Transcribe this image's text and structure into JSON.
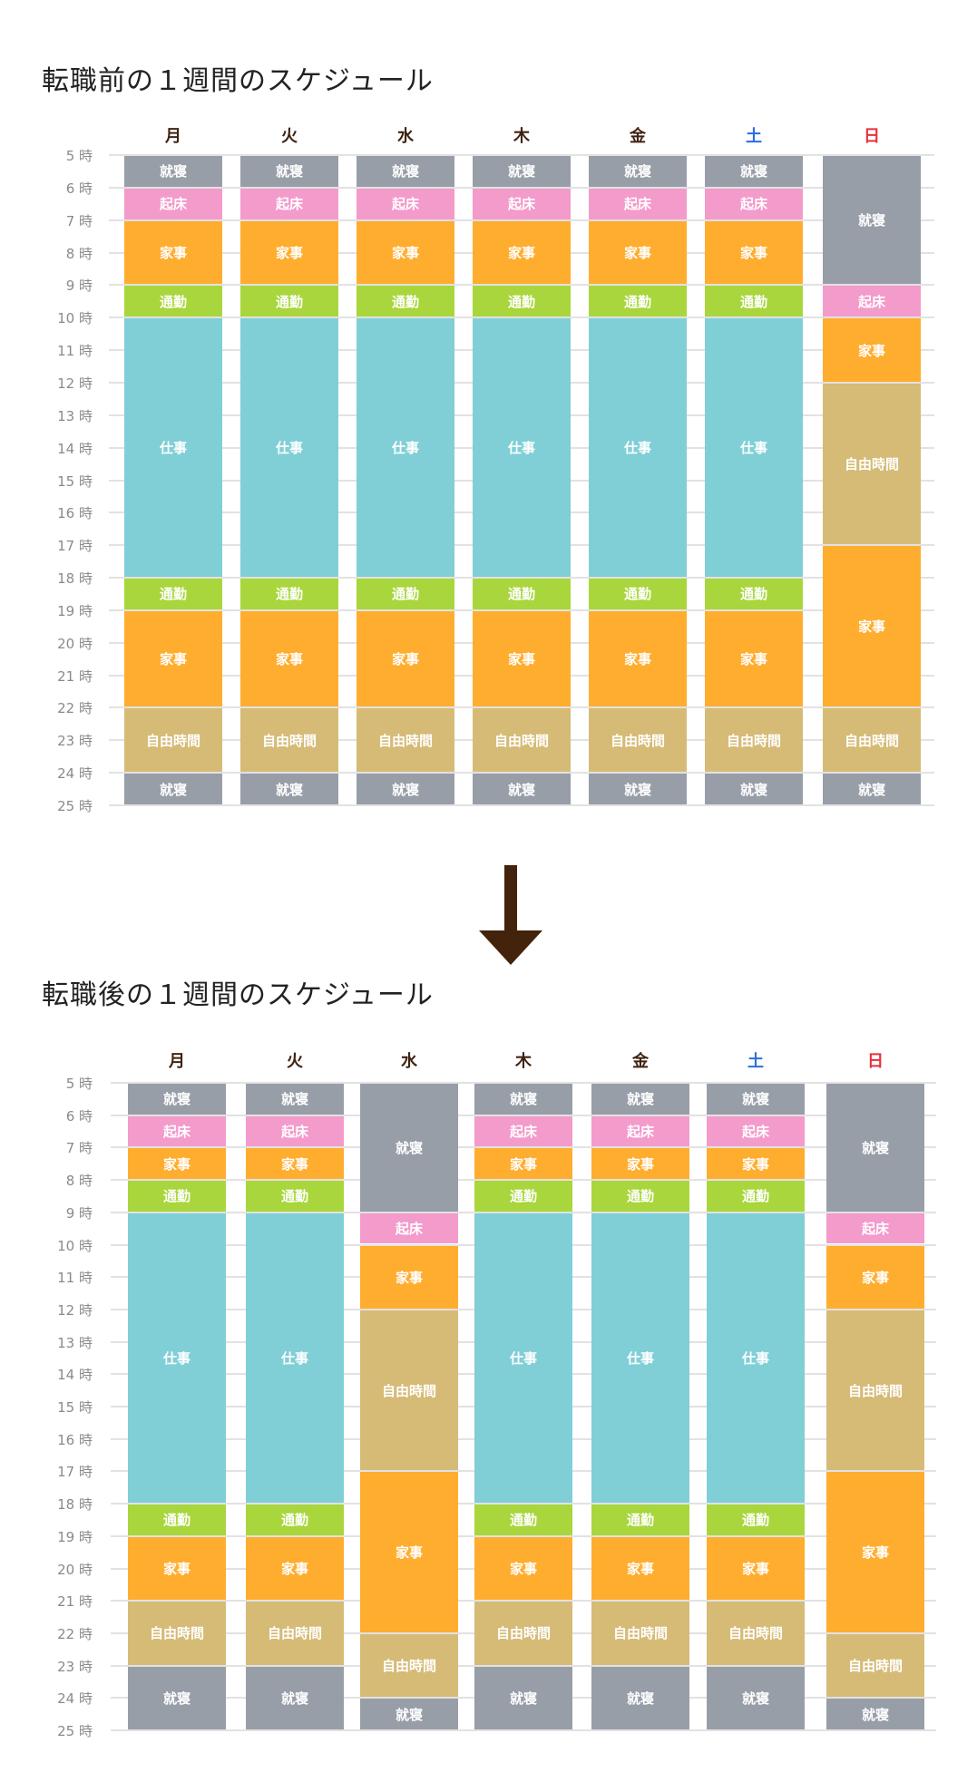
{
  "colors": {
    "就寝": "#989ea8",
    "起床": "#f39bcb",
    "家事": "#ffad2f",
    "通勤": "#a9d63c",
    "仕事": "#80cfd6",
    "自由時間": "#d6bb77",
    "weekday": "#3f2310",
    "saturday": "#2a6ee0",
    "sunday": "#e8303a",
    "arrow": "#44230c"
  },
  "chart_data": [
    {
      "type": "bar",
      "title": "転職前の１週間のスケジュール",
      "categories": [
        "月",
        "火",
        "水",
        "木",
        "金",
        "土",
        "日"
      ],
      "y_ticks": [
        "5 時",
        "6 時",
        "7 時",
        "8 時",
        "9 時",
        "10 時",
        "11 時",
        "12 時",
        "13 時",
        "14 時",
        "15 時",
        "16 時",
        "17 時",
        "18 時",
        "19 時",
        "20 時",
        "21 時",
        "22 時",
        "23 時",
        "24 時",
        "25 時"
      ],
      "ylim": [
        5,
        25
      ],
      "grid": true,
      "days": [
        [
          [
            "就寝",
            5,
            6
          ],
          [
            "起床",
            6,
            7
          ],
          [
            "家事",
            7,
            9
          ],
          [
            "通勤",
            9,
            10
          ],
          [
            "仕事",
            10,
            18
          ],
          [
            "通勤",
            18,
            19
          ],
          [
            "家事",
            19,
            22
          ],
          [
            "自由時間",
            22,
            24
          ],
          [
            "就寝",
            24,
            25
          ]
        ],
        [
          [
            "就寝",
            5,
            6
          ],
          [
            "起床",
            6,
            7
          ],
          [
            "家事",
            7,
            9
          ],
          [
            "通勤",
            9,
            10
          ],
          [
            "仕事",
            10,
            18
          ],
          [
            "通勤",
            18,
            19
          ],
          [
            "家事",
            19,
            22
          ],
          [
            "自由時間",
            22,
            24
          ],
          [
            "就寝",
            24,
            25
          ]
        ],
        [
          [
            "就寝",
            5,
            6
          ],
          [
            "起床",
            6,
            7
          ],
          [
            "家事",
            7,
            9
          ],
          [
            "通勤",
            9,
            10
          ],
          [
            "仕事",
            10,
            18
          ],
          [
            "通勤",
            18,
            19
          ],
          [
            "家事",
            19,
            22
          ],
          [
            "自由時間",
            22,
            24
          ],
          [
            "就寝",
            24,
            25
          ]
        ],
        [
          [
            "就寝",
            5,
            6
          ],
          [
            "起床",
            6,
            7
          ],
          [
            "家事",
            7,
            9
          ],
          [
            "通勤",
            9,
            10
          ],
          [
            "仕事",
            10,
            18
          ],
          [
            "通勤",
            18,
            19
          ],
          [
            "家事",
            19,
            22
          ],
          [
            "自由時間",
            22,
            24
          ],
          [
            "就寝",
            24,
            25
          ]
        ],
        [
          [
            "就寝",
            5,
            6
          ],
          [
            "起床",
            6,
            7
          ],
          [
            "家事",
            7,
            9
          ],
          [
            "通勤",
            9,
            10
          ],
          [
            "仕事",
            10,
            18
          ],
          [
            "通勤",
            18,
            19
          ],
          [
            "家事",
            19,
            22
          ],
          [
            "自由時間",
            22,
            24
          ],
          [
            "就寝",
            24,
            25
          ]
        ],
        [
          [
            "就寝",
            5,
            6
          ],
          [
            "起床",
            6,
            7
          ],
          [
            "家事",
            7,
            9
          ],
          [
            "通勤",
            9,
            10
          ],
          [
            "仕事",
            10,
            18
          ],
          [
            "通勤",
            18,
            19
          ],
          [
            "家事",
            19,
            22
          ],
          [
            "自由時間",
            22,
            24
          ],
          [
            "就寝",
            24,
            25
          ]
        ],
        [
          [
            "就寝",
            5,
            9
          ],
          [
            "起床",
            9,
            10
          ],
          [
            "家事",
            10,
            12
          ],
          [
            "自由時間",
            12,
            17
          ],
          [
            "家事",
            17,
            22
          ],
          [
            "自由時間",
            22,
            24
          ],
          [
            "就寝",
            24,
            25
          ]
        ]
      ]
    },
    {
      "type": "bar",
      "title": "転職後の１週間のスケジュール",
      "categories": [
        "月",
        "火",
        "水",
        "木",
        "金",
        "土",
        "日"
      ],
      "y_ticks": [
        "5 時",
        "6 時",
        "7 時",
        "8 時",
        "9 時",
        "10 時",
        "11 時",
        "12 時",
        "13 時",
        "14 時",
        "15 時",
        "16 時",
        "17 時",
        "18 時",
        "19 時",
        "20 時",
        "21 時",
        "22 時",
        "23 時",
        "24 時",
        "25 時"
      ],
      "ylim": [
        5,
        25
      ],
      "grid": true,
      "days": [
        [
          [
            "就寝",
            5,
            6
          ],
          [
            "起床",
            6,
            7
          ],
          [
            "家事",
            7,
            8
          ],
          [
            "通勤",
            8,
            9
          ],
          [
            "仕事",
            9,
            18
          ],
          [
            "通勤",
            18,
            19
          ],
          [
            "家事",
            19,
            21
          ],
          [
            "自由時間",
            21,
            23
          ],
          [
            "就寝",
            23,
            25
          ]
        ],
        [
          [
            "就寝",
            5,
            6
          ],
          [
            "起床",
            6,
            7
          ],
          [
            "家事",
            7,
            8
          ],
          [
            "通勤",
            8,
            9
          ],
          [
            "仕事",
            9,
            18
          ],
          [
            "通勤",
            18,
            19
          ],
          [
            "家事",
            19,
            21
          ],
          [
            "自由時間",
            21,
            23
          ],
          [
            "就寝",
            23,
            25
          ]
        ],
        [
          [
            "就寝",
            5,
            9
          ],
          [
            "起床",
            9,
            10
          ],
          [
            "家事",
            10,
            12
          ],
          [
            "自由時間",
            12,
            17
          ],
          [
            "家事",
            17,
            22
          ],
          [
            "自由時間",
            22,
            24
          ],
          [
            "就寝",
            24,
            25
          ]
        ],
        [
          [
            "就寝",
            5,
            6
          ],
          [
            "起床",
            6,
            7
          ],
          [
            "家事",
            7,
            8
          ],
          [
            "通勤",
            8,
            9
          ],
          [
            "仕事",
            9,
            18
          ],
          [
            "通勤",
            18,
            19
          ],
          [
            "家事",
            19,
            21
          ],
          [
            "自由時間",
            21,
            23
          ],
          [
            "就寝",
            23,
            25
          ]
        ],
        [
          [
            "就寝",
            5,
            6
          ],
          [
            "起床",
            6,
            7
          ],
          [
            "家事",
            7,
            8
          ],
          [
            "通勤",
            8,
            9
          ],
          [
            "仕事",
            9,
            18
          ],
          [
            "通勤",
            18,
            19
          ],
          [
            "家事",
            19,
            21
          ],
          [
            "自由時間",
            21,
            23
          ],
          [
            "就寝",
            23,
            25
          ]
        ],
        [
          [
            "就寝",
            5,
            6
          ],
          [
            "起床",
            6,
            7
          ],
          [
            "家事",
            7,
            8
          ],
          [
            "通勤",
            8,
            9
          ],
          [
            "仕事",
            9,
            18
          ],
          [
            "通勤",
            18,
            19
          ],
          [
            "家事",
            19,
            21
          ],
          [
            "自由時間",
            21,
            23
          ],
          [
            "就寝",
            23,
            25
          ]
        ],
        [
          [
            "就寝",
            5,
            9
          ],
          [
            "起床",
            9,
            10
          ],
          [
            "家事",
            10,
            12
          ],
          [
            "自由時間",
            12,
            17
          ],
          [
            "家事",
            17,
            22
          ],
          [
            "自由時間",
            22,
            24
          ],
          [
            "就寝",
            24,
            25
          ]
        ]
      ]
    }
  ]
}
